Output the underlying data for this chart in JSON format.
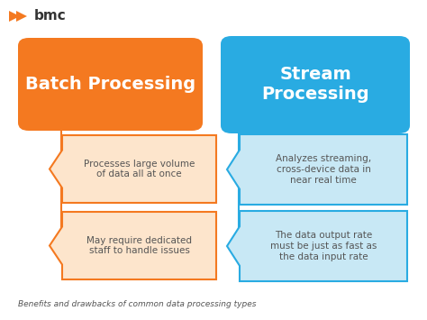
{
  "bg_color": "#ffffff",
  "title_text": "Benefits and drawbacks of common data processing types",
  "bmc_text_color": "#444444",
  "bmc_orange": "#f47920",
  "left_header": "Batch Processing",
  "right_header": "Stream\nProcessing",
  "left_header_bg": "#f47920",
  "right_header_bg": "#29abe2",
  "left_box1_text": "Processes large volume\nof data all at once",
  "left_box2_text": "May require dedicated\nstaff to handle issues",
  "right_box1_text": "Analyzes streaming,\ncross-device data in\nnear real time",
  "right_box2_text": "The data output rate\nmust be just as fast as\nthe data input rate",
  "left_box_bg": "#fde5cc",
  "right_box_bg": "#c8e8f5",
  "left_box_border": "#f47920",
  "right_box_border": "#29abe2",
  "connector_left": "#f47920",
  "connector_right": "#29abe2",
  "text_dark": "#555555",
  "text_white": "#ffffff",
  "fig_w": 4.74,
  "fig_h": 3.55,
  "dpi": 100
}
